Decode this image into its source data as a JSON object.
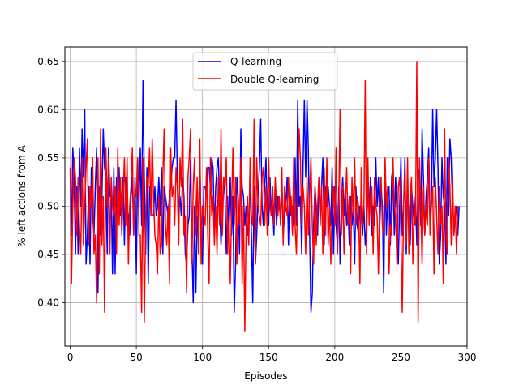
{
  "chart_data": {
    "type": "line",
    "title": "",
    "xlabel": "Episodes",
    "ylabel": "% left actions from A",
    "xlim": [
      -4,
      300
    ],
    "ylim": [
      0.355,
      0.665
    ],
    "x_ticks": [
      0,
      50,
      100,
      150,
      200,
      250,
      300
    ],
    "y_ticks": [
      0.4,
      0.45,
      0.5,
      0.55,
      0.6,
      0.65
    ],
    "grid": true,
    "legend_position": "upper-center",
    "series": [
      {
        "name": "Q-learning",
        "color": "#0000ff",
        "values": [
          0.47,
          0.47,
          0.56,
          0.53,
          0.45,
          0.52,
          0.45,
          0.56,
          0.5,
          0.58,
          0.53,
          0.6,
          0.44,
          0.47,
          0.52,
          0.44,
          0.54,
          0.49,
          0.47,
          0.52,
          0.56,
          0.41,
          0.52,
          0.47,
          0.51,
          0.58,
          0.54,
          0.53,
          0.45,
          0.56,
          0.51,
          0.52,
          0.43,
          0.54,
          0.43,
          0.53,
          0.5,
          0.54,
          0.49,
          0.51,
          0.53,
          0.46,
          0.53,
          0.5,
          0.49,
          0.47,
          0.51,
          0.53,
          0.47,
          0.53,
          0.43,
          0.55,
          0.5,
          0.56,
          0.48,
          0.63,
          0.53,
          0.45,
          0.54,
          0.42,
          0.52,
          0.5,
          0.49,
          0.49,
          0.52,
          0.49,
          0.5,
          0.53,
          0.49,
          0.54,
          0.45,
          0.52,
          0.51,
          0.5,
          0.49,
          0.51,
          0.52,
          0.54,
          0.55,
          0.55,
          0.61,
          0.53,
          0.49,
          0.51,
          0.49,
          0.53,
          0.51,
          0.45,
          0.44,
          0.48,
          0.49,
          0.55,
          0.46,
          0.4,
          0.5,
          0.41,
          0.49,
          0.48,
          0.55,
          0.47,
          0.44,
          0.52,
          0.52,
          0.51,
          0.54,
          0.54,
          0.52,
          0.55,
          0.54,
          0.47,
          0.52,
          0.54,
          0.55,
          0.5,
          0.46,
          0.49,
          0.53,
          0.51,
          0.45,
          0.51,
          0.47,
          0.53,
          0.47,
          0.51,
          0.39,
          0.44,
          0.53,
          0.51,
          0.45,
          0.58,
          0.52,
          0.51,
          0.48,
          0.5,
          0.47,
          0.47,
          0.54,
          0.47,
          0.4,
          0.52,
          0.44,
          0.47,
          0.51,
          0.54,
          0.59,
          0.5,
          0.48,
          0.52,
          0.55,
          0.49,
          0.48,
          0.53,
          0.49,
          0.5,
          0.47,
          0.52,
          0.48,
          0.51,
          0.5,
          0.49,
          0.52,
          0.47,
          0.49,
          0.5,
          0.53,
          0.46,
          0.52,
          0.49,
          0.5,
          0.48,
          0.55,
          0.48,
          0.61,
          0.5,
          0.51,
          0.45,
          0.54,
          0.61,
          0.53,
          0.61,
          0.56,
          0.47,
          0.39,
          0.41,
          0.48,
          0.52,
          0.5,
          0.47,
          0.53,
          0.49,
          0.52,
          0.55,
          0.46,
          0.52,
          0.5,
          0.52,
          0.5,
          0.48,
          0.54,
          0.45,
          0.52,
          0.48,
          0.46,
          0.52,
          0.44,
          0.5,
          0.53,
          0.49,
          0.52,
          0.48,
          0.5,
          0.46,
          0.51,
          0.48,
          0.5,
          0.44,
          0.52,
          0.48,
          0.47,
          0.5,
          0.5,
          0.47,
          0.5,
          0.46,
          0.48,
          0.51,
          0.5,
          0.53,
          0.47,
          0.5,
          0.48,
          0.55,
          0.5,
          0.53,
          0.48,
          0.52,
          0.5,
          0.41,
          0.54,
          0.47,
          0.51,
          0.52,
          0.46,
          0.53,
          0.54,
          0.47,
          0.53,
          0.49,
          0.44,
          0.5,
          0.55,
          0.47,
          0.5,
          0.55,
          0.45,
          0.52,
          0.49,
          0.46,
          0.52,
          0.5,
          0.48,
          0.51,
          0.46,
          0.53,
          0.54,
          0.48,
          0.58,
          0.53,
          0.47,
          0.51,
          0.53,
          0.56,
          0.49,
          0.5,
          0.6,
          0.52,
          0.55,
          0.6,
          0.54,
          0.44,
          0.47,
          0.55,
          0.51,
          0.5,
          0.44,
          0.55,
          0.49,
          0.57,
          0.55,
          0.5,
          0.47,
          0.49,
          0.5,
          0.47,
          0.5
        ],
        "x_start": 0
      },
      {
        "name": "Double Q-learning",
        "color": "#ff0000",
        "values": [
          0.54,
          0.42,
          0.5,
          0.55,
          0.53,
          0.47,
          0.53,
          0.48,
          0.45,
          0.55,
          0.46,
          0.5,
          0.54,
          0.57,
          0.46,
          0.52,
          0.5,
          0.55,
          0.45,
          0.47,
          0.4,
          0.55,
          0.43,
          0.58,
          0.46,
          0.51,
          0.39,
          0.56,
          0.5,
          0.55,
          0.45,
          0.53,
          0.5,
          0.49,
          0.52,
          0.45,
          0.56,
          0.48,
          0.53,
          0.47,
          0.51,
          0.55,
          0.48,
          0.55,
          0.44,
          0.5,
          0.52,
          0.56,
          0.47,
          0.52,
          0.51,
          0.55,
          0.47,
          0.47,
          0.39,
          0.55,
          0.38,
          0.48,
          0.53,
          0.52,
          0.56,
          0.49,
          0.57,
          0.51,
          0.47,
          0.46,
          0.43,
          0.51,
          0.45,
          0.46,
          0.53,
          0.58,
          0.48,
          0.46,
          0.5,
          0.42,
          0.56,
          0.51,
          0.52,
          0.48,
          0.54,
          0.52,
          0.46,
          0.55,
          0.52,
          0.59,
          0.47,
          0.49,
          0.41,
          0.53,
          0.55,
          0.58,
          0.44,
          0.52,
          0.55,
          0.47,
          0.53,
          0.45,
          0.57,
          0.44,
          0.5,
          0.49,
          0.48,
          0.54,
          0.47,
          0.42,
          0.55,
          0.49,
          0.51,
          0.46,
          0.5,
          0.45,
          0.53,
          0.48,
          0.58,
          0.47,
          0.53,
          0.52,
          0.55,
          0.45,
          0.49,
          0.42,
          0.5,
          0.56,
          0.48,
          0.53,
          0.44,
          0.51,
          0.48,
          0.55,
          0.42,
          0.5,
          0.37,
          0.48,
          0.51,
          0.46,
          0.55,
          0.49,
          0.48,
          0.59,
          0.44,
          0.55,
          0.5,
          0.49,
          0.48,
          0.53,
          0.54,
          0.48,
          0.52,
          0.47,
          0.55,
          0.5,
          0.49,
          0.52,
          0.48,
          0.53,
          0.5,
          0.49,
          0.51,
          0.48,
          0.54,
          0.46,
          0.52,
          0.5,
          0.49,
          0.53,
          0.49,
          0.51,
          0.47,
          0.55,
          0.48,
          0.45,
          0.52,
          0.58,
          0.55,
          0.48,
          0.52,
          0.5,
          0.45,
          0.53,
          0.47,
          0.51,
          0.55,
          0.48,
          0.44,
          0.52,
          0.46,
          0.5,
          0.53,
          0.48,
          0.52,
          0.45,
          0.54,
          0.47,
          0.55,
          0.46,
          0.5,
          0.44,
          0.5,
          0.52,
          0.48,
          0.56,
          0.45,
          0.5,
          0.6,
          0.47,
          0.52,
          0.45,
          0.5,
          0.54,
          0.48,
          0.51,
          0.43,
          0.53,
          0.49,
          0.55,
          0.48,
          0.51,
          0.5,
          0.42,
          0.54,
          0.48,
          0.5,
          0.63,
          0.45,
          0.55,
          0.48,
          0.51,
          0.52,
          0.45,
          0.53,
          0.5,
          0.49,
          0.43,
          0.51,
          0.53,
          0.48,
          0.47,
          0.55,
          0.5,
          0.52,
          0.43,
          0.48,
          0.47,
          0.55,
          0.5,
          0.49,
          0.44,
          0.52,
          0.53,
          0.47,
          0.39,
          0.5,
          0.54,
          0.46,
          0.55,
          0.45,
          0.51,
          0.53,
          0.44,
          0.5,
          0.48,
          0.65,
          0.38,
          0.55,
          0.5,
          0.44,
          0.52,
          0.47,
          0.5,
          0.48,
          0.55,
          0.47,
          0.5,
          0.52,
          0.43,
          0.53,
          0.49,
          0.45,
          0.52,
          0.48,
          0.5,
          0.42,
          0.58,
          0.47,
          0.45,
          0.55,
          0.52,
          0.46,
          0.53,
          0.47,
          0.5,
          0.45,
          0.5
        ],
        "x_start": 0
      }
    ]
  }
}
